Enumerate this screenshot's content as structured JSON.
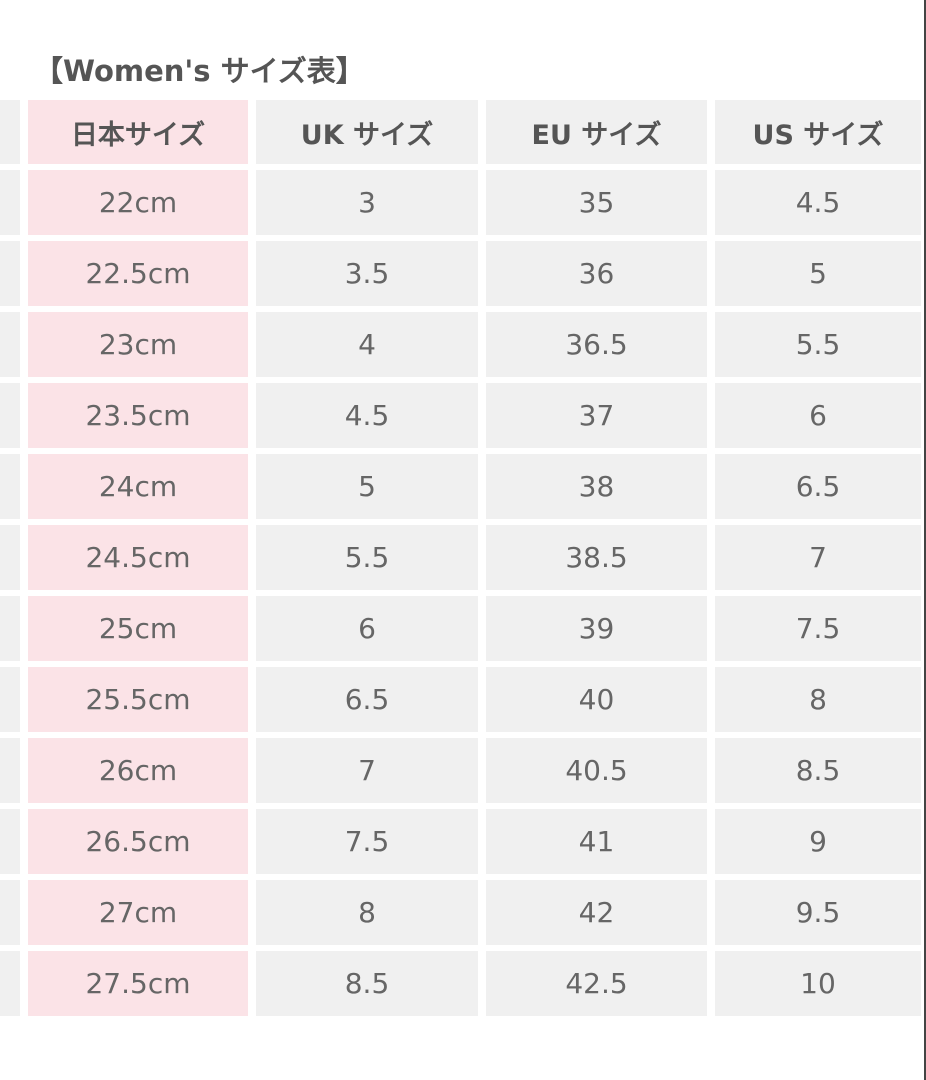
{
  "title": "【Women's サイズ表】",
  "headers": [
    "日本サイズ",
    "UK サイズ",
    "EU サイズ",
    "US サイズ"
  ],
  "rows": [
    [
      "22cm",
      "3",
      "35",
      "4.5"
    ],
    [
      "22.5cm",
      "3.5",
      "36",
      "5"
    ],
    [
      "23cm",
      "4",
      "36.5",
      "5.5"
    ],
    [
      "23.5cm",
      "4.5",
      "37",
      "6"
    ],
    [
      "24cm",
      "5",
      "38",
      "6.5"
    ],
    [
      "24.5cm",
      "5.5",
      "38.5",
      "7"
    ],
    [
      "25cm",
      "6",
      "39",
      "7.5"
    ],
    [
      "25.5cm",
      "6.5",
      "40",
      "8"
    ],
    [
      "26cm",
      "7",
      "40.5",
      "8.5"
    ],
    [
      "26.5cm",
      "7.5",
      "41",
      "9"
    ],
    [
      "27cm",
      "8",
      "42",
      "9.5"
    ],
    [
      "27.5cm",
      "8.5",
      "42.5",
      "10"
    ]
  ],
  "colors": {
    "japan_column": "#fbe3e7",
    "cell": "#f0f0f0",
    "text": "#666666"
  }
}
